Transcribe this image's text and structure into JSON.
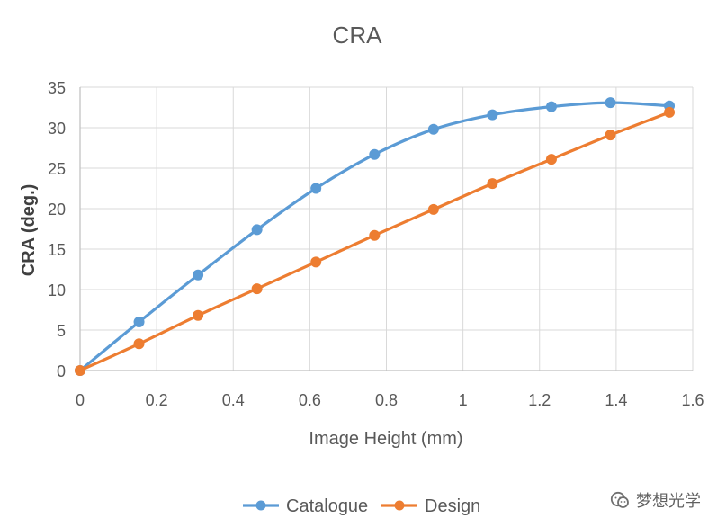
{
  "chart_data": {
    "type": "line",
    "title": "CRA",
    "xlabel": "Image Height (mm)",
    "ylabel": "CRA (deg.)",
    "xlim": [
      0,
      1.6
    ],
    "ylim": [
      0,
      35
    ],
    "xticks": [
      0,
      0.2,
      0.4,
      0.6,
      0.8,
      1,
      1.2,
      1.4,
      1.6
    ],
    "yticks": [
      0,
      5,
      10,
      15,
      20,
      25,
      30,
      35
    ],
    "grid": true,
    "legend_position": "bottom",
    "series": [
      {
        "name": "Catalogue",
        "color": "#5b9bd5",
        "x": [
          0,
          0.154,
          0.308,
          0.462,
          0.616,
          0.769,
          0.923,
          1.077,
          1.231,
          1.385,
          1.539
        ],
        "y": [
          0,
          6,
          11.8,
          17.4,
          22.5,
          26.7,
          29.8,
          31.6,
          32.6,
          33.1,
          32.7
        ]
      },
      {
        "name": "Design",
        "color": "#ed7d31",
        "x": [
          0,
          0.154,
          0.308,
          0.462,
          0.616,
          0.769,
          0.923,
          1.077,
          1.231,
          1.385,
          1.539
        ],
        "y": [
          0,
          3.3,
          6.8,
          10.1,
          13.4,
          16.7,
          19.9,
          23.1,
          26.1,
          29.1,
          31.9
        ]
      }
    ]
  },
  "watermark": {
    "text": "梦想光学",
    "icon": "wechat-logo-icon"
  }
}
